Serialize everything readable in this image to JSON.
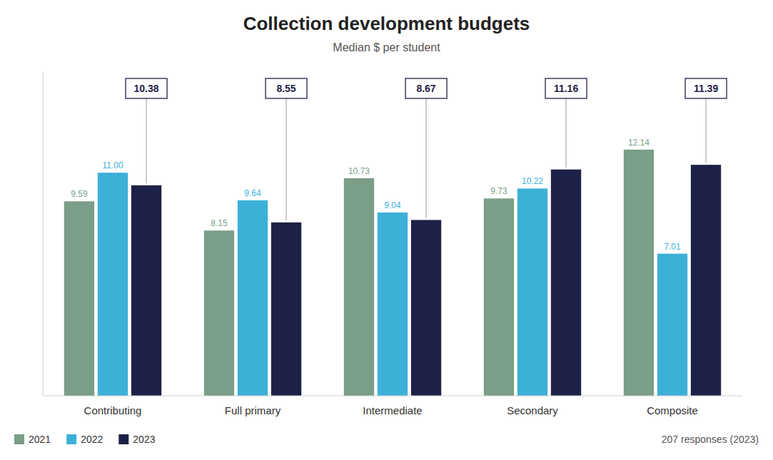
{
  "chart_data": {
    "type": "bar",
    "title": "Collection development budgets",
    "subtitle": "Median $ per student",
    "categories": [
      "Contributing",
      "Full primary",
      "Intermediate",
      "Secondary",
      "Composite"
    ],
    "series": [
      {
        "name": "2021",
        "color": "#7a9e87",
        "values": [
          9.59,
          8.15,
          10.73,
          9.73,
          12.14
        ],
        "value_labels": [
          "9.59",
          "8.15",
          "10.73",
          "9.73",
          "12.14"
        ]
      },
      {
        "name": "2022",
        "color": "#3db0d8",
        "values": [
          11.0,
          9.64,
          9.04,
          10.22,
          7.01
        ],
        "value_labels": [
          "11.00",
          "9.64",
          "9.04",
          "10.22",
          "7.01"
        ]
      },
      {
        "name": "2023",
        "color": "#1e2147",
        "values": [
          10.38,
          8.55,
          8.67,
          11.16,
          11.39
        ],
        "value_labels": [
          "10.38",
          "8.55",
          "8.67",
          "11.16",
          "11.39"
        ]
      }
    ],
    "ylim": [
      0,
      16
    ],
    "tick_labels": "x",
    "grid": false,
    "legend": "lower left",
    "data_labels": true,
    "annotations": [
      "207 responses (2023)"
    ]
  }
}
